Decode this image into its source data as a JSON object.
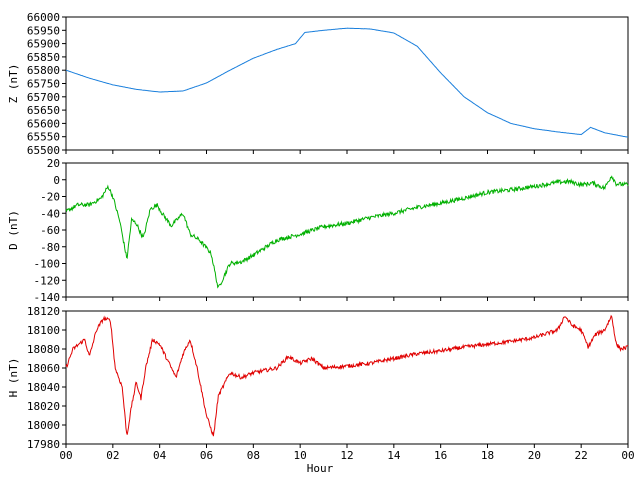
{
  "chart_data": [
    {
      "type": "line",
      "ylabel": "Z (nT)",
      "ylim": [
        65500,
        66000
      ],
      "yticks": [
        65500,
        65550,
        65600,
        65650,
        65700,
        65750,
        65800,
        65850,
        65900,
        65950,
        66000
      ],
      "color": "#1a7fdc",
      "x": [
        0,
        1,
        2,
        3,
        4,
        5,
        6,
        7,
        8,
        9,
        9.8,
        10.2,
        11,
        12,
        13,
        14,
        15,
        16,
        17,
        18,
        19,
        20,
        21,
        22,
        22.4,
        23,
        24
      ],
      "values": [
        65800,
        65770,
        65745,
        65728,
        65718,
        65722,
        65752,
        65800,
        65845,
        65878,
        65900,
        65942,
        65950,
        65958,
        65955,
        65940,
        65890,
        65790,
        65700,
        65640,
        65600,
        65580,
        65568,
        65558,
        65585,
        65565,
        65548
      ]
    },
    {
      "type": "line",
      "ylabel": "D (nT)",
      "ylim": [
        -140,
        20
      ],
      "yticks": [
        -140,
        -120,
        -100,
        -80,
        -60,
        -40,
        -20,
        0,
        20
      ],
      "color": "#00b000",
      "x": [
        0,
        0.5,
        1,
        1.5,
        1.8,
        2,
        2.3,
        2.6,
        2.8,
        3,
        3.3,
        3.6,
        3.9,
        4.1,
        4.5,
        5,
        5.3,
        5.7,
        6.2,
        6.5,
        7,
        7.5,
        8,
        9,
        10,
        11,
        12,
        13,
        14,
        15,
        16,
        17,
        18,
        19,
        20,
        21,
        21.5,
        22,
        22.5,
        23,
        23.3,
        23.5,
        24
      ],
      "values": [
        -38,
        -30,
        -30,
        -22,
        -8,
        -20,
        -50,
        -95,
        -48,
        -52,
        -70,
        -35,
        -30,
        -40,
        -55,
        -40,
        -65,
        -72,
        -88,
        -130,
        -100,
        -98,
        -90,
        -72,
        -65,
        -56,
        -52,
        -45,
        -40,
        -33,
        -28,
        -22,
        -15,
        -12,
        -8,
        -3,
        -2,
        -6,
        -4,
        -10,
        5,
        -5,
        -6
      ]
    },
    {
      "type": "line",
      "ylabel": "H (nT)",
      "ylim": [
        17980,
        18120
      ],
      "yticks": [
        17980,
        18000,
        18020,
        18040,
        18060,
        18080,
        18100,
        18120
      ],
      "color": "#e00000",
      "x": [
        0,
        0.3,
        0.8,
        1,
        1.3,
        1.6,
        1.9,
        2.1,
        2.4,
        2.6,
        2.8,
        3,
        3.2,
        3.4,
        3.7,
        4,
        4.3,
        4.7,
        5,
        5.3,
        5.6,
        6,
        6.3,
        6.5,
        7,
        7.5,
        8,
        9,
        9.5,
        10,
        10.5,
        11,
        12,
        13,
        14,
        15,
        16,
        17,
        18,
        19,
        20,
        21,
        21.3,
        21.6,
        22,
        22.3,
        22.6,
        23,
        23.3,
        23.5,
        23.7,
        24
      ],
      "values": [
        18060,
        18080,
        18090,
        18072,
        18100,
        18112,
        18110,
        18060,
        18040,
        17988,
        18020,
        18045,
        18028,
        18060,
        18090,
        18085,
        18070,
        18050,
        18075,
        18090,
        18060,
        18010,
        17988,
        18030,
        18055,
        18050,
        18055,
        18060,
        18072,
        18065,
        18070,
        18060,
        18062,
        18065,
        18070,
        18075,
        18078,
        18082,
        18085,
        18088,
        18092,
        18100,
        18115,
        18105,
        18100,
        18082,
        18095,
        18100,
        18115,
        18085,
        18080,
        18082
      ]
    }
  ],
  "xaxis": {
    "label": "Hour",
    "range": [
      0,
      24
    ],
    "ticks": [
      "00",
      "02",
      "04",
      "06",
      "08",
      "10",
      "12",
      "14",
      "16",
      "18",
      "20",
      "22",
      "00"
    ]
  }
}
